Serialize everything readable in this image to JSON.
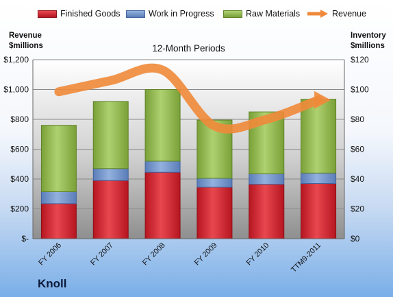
{
  "chart_data": {
    "type": "bar",
    "stacked": true,
    "subtitle": "12-Month Periods",
    "categories": [
      "FY 2006",
      "FY 2007",
      "FY 2008",
      "FY 2009",
      "FY 2010",
      "TTM9-2011"
    ],
    "y_left": {
      "title_line1": "Revenue",
      "title_line2": "$millions",
      "range": [
        0,
        1200
      ],
      "ticks": [
        0,
        200,
        400,
        600,
        800,
        1000,
        1200
      ],
      "tick_labels": [
        "$-",
        "$200",
        "$400",
        "$600",
        "$800",
        "$1,000",
        "$1,200"
      ]
    },
    "y_right": {
      "title_line1": "Inventory",
      "title_line2": "$millions",
      "range": [
        0,
        120
      ],
      "ticks": [
        0,
        20,
        40,
        60,
        80,
        100,
        120
      ],
      "tick_labels": [
        "$0",
        "$20",
        "$40",
        "$60",
        "$80",
        "$100",
        "$120"
      ]
    },
    "series": [
      {
        "name": "Finished Goods",
        "axis": "right",
        "color": "#c8202a",
        "values": [
          23.5,
          39,
          44.5,
          34.5,
          36.5,
          37
        ]
      },
      {
        "name": "Work in Progress",
        "axis": "right",
        "color": "#6d8fc6",
        "values": [
          8,
          8,
          7.5,
          6,
          7,
          7
        ]
      },
      {
        "name": "Raw Materials",
        "axis": "right",
        "color": "#8db24a",
        "values": [
          44.5,
          45,
          48,
          39,
          41.5,
          49.5
        ]
      },
      {
        "name": "Revenue",
        "axis": "left",
        "color": "#f08a3a",
        "kind": "line",
        "values": [
          985,
          1060,
          1130,
          755,
          800,
          930
        ]
      }
    ],
    "grid": true,
    "legend_position": "top"
  },
  "brand": "Knoll"
}
